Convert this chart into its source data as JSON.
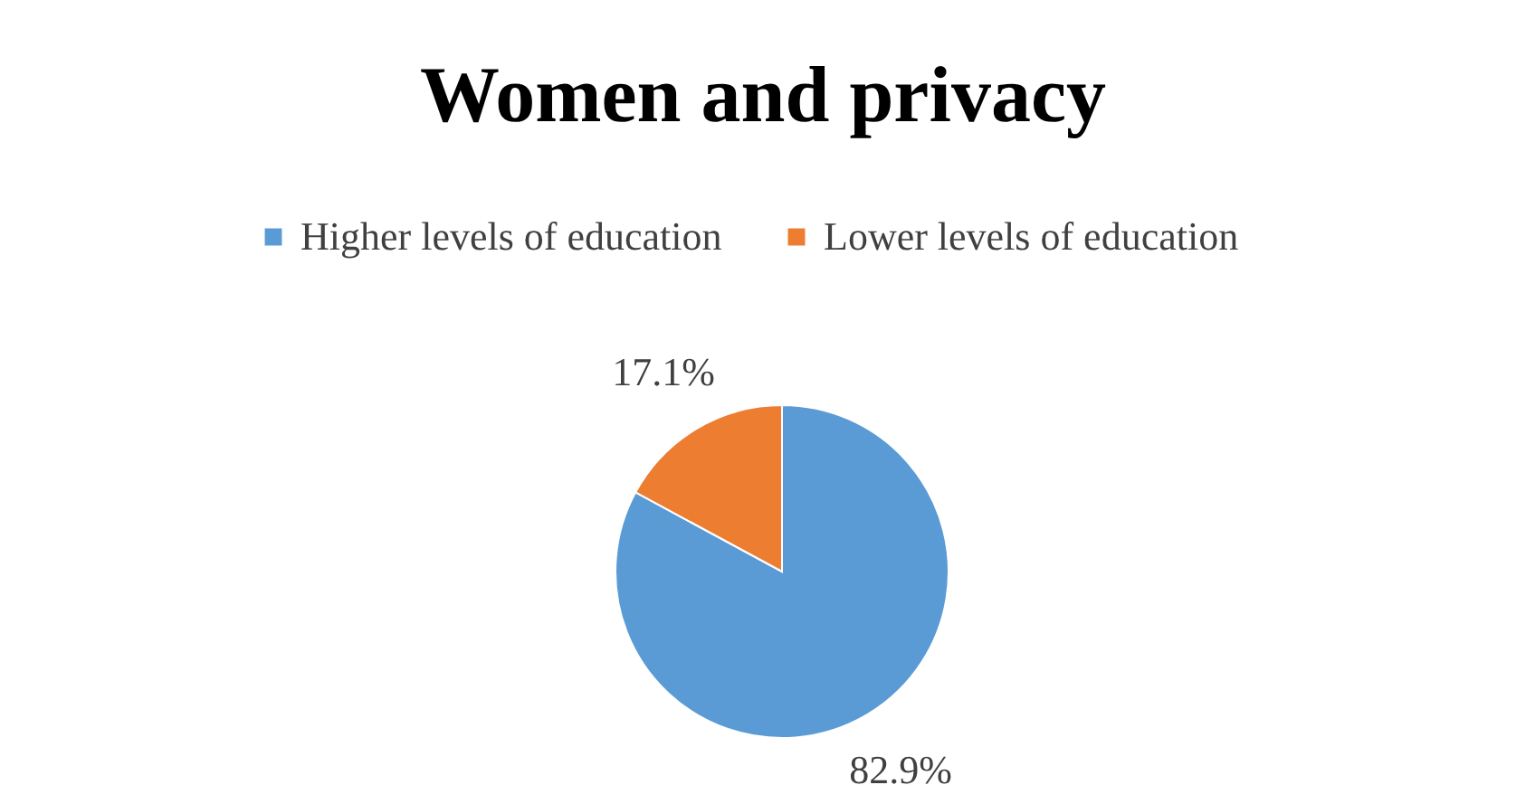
{
  "chart_data": {
    "type": "pie",
    "title": "Women and privacy",
    "categories": [
      "Higher levels of education",
      "Lower levels of education"
    ],
    "values": [
      82.9,
      17.1
    ],
    "colors": [
      "#5b9bd5",
      "#ed7d31"
    ],
    "value_labels": [
      "82.9%",
      "17.1%"
    ],
    "legend": "top"
  }
}
